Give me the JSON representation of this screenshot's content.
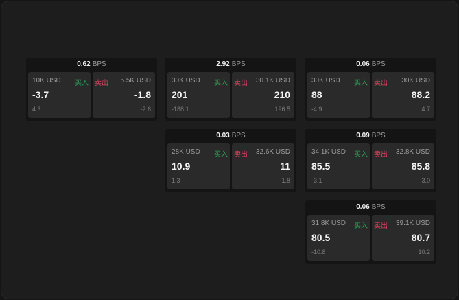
{
  "labels": {
    "buy": "买入",
    "sell": "卖出",
    "unit": "BPS"
  },
  "colors": {
    "buy": "#2fa25a",
    "sell": "#d9435f"
  },
  "cards": [
    {
      "spread": "0.62",
      "buy": {
        "size": "10K USD",
        "price": "-3.7",
        "change": "4.3"
      },
      "sell": {
        "size": "5.5K USD",
        "price": "-1.8",
        "change": "-2.6"
      }
    },
    {
      "spread": "2.92",
      "buy": {
        "size": "30K USD",
        "price": "201",
        "change": "-188.1"
      },
      "sell": {
        "size": "30.1K USD",
        "price": "210",
        "change": "196.5"
      }
    },
    {
      "spread": "0.06",
      "buy": {
        "size": "30K USD",
        "price": "88",
        "change": "-4.9"
      },
      "sell": {
        "size": "30K USD",
        "price": "88.2",
        "change": "4.7"
      }
    },
    {
      "spread": "0.03",
      "buy": {
        "size": "28K USD",
        "price": "10.9",
        "change": "1.3"
      },
      "sell": {
        "size": "32.6K USD",
        "price": "11",
        "change": "-1.8"
      }
    },
    {
      "spread": "0.09",
      "buy": {
        "size": "34.1K USD",
        "price": "85.5",
        "change": "-3.1"
      },
      "sell": {
        "size": "32.8K USD",
        "price": "85.8",
        "change": "3.0"
      }
    },
    {
      "spread": "0.06",
      "buy": {
        "size": "31.8K USD",
        "price": "80.5",
        "change": "-10.8"
      },
      "sell": {
        "size": "39.1K USD",
        "price": "80.7",
        "change": "10.2"
      }
    }
  ]
}
